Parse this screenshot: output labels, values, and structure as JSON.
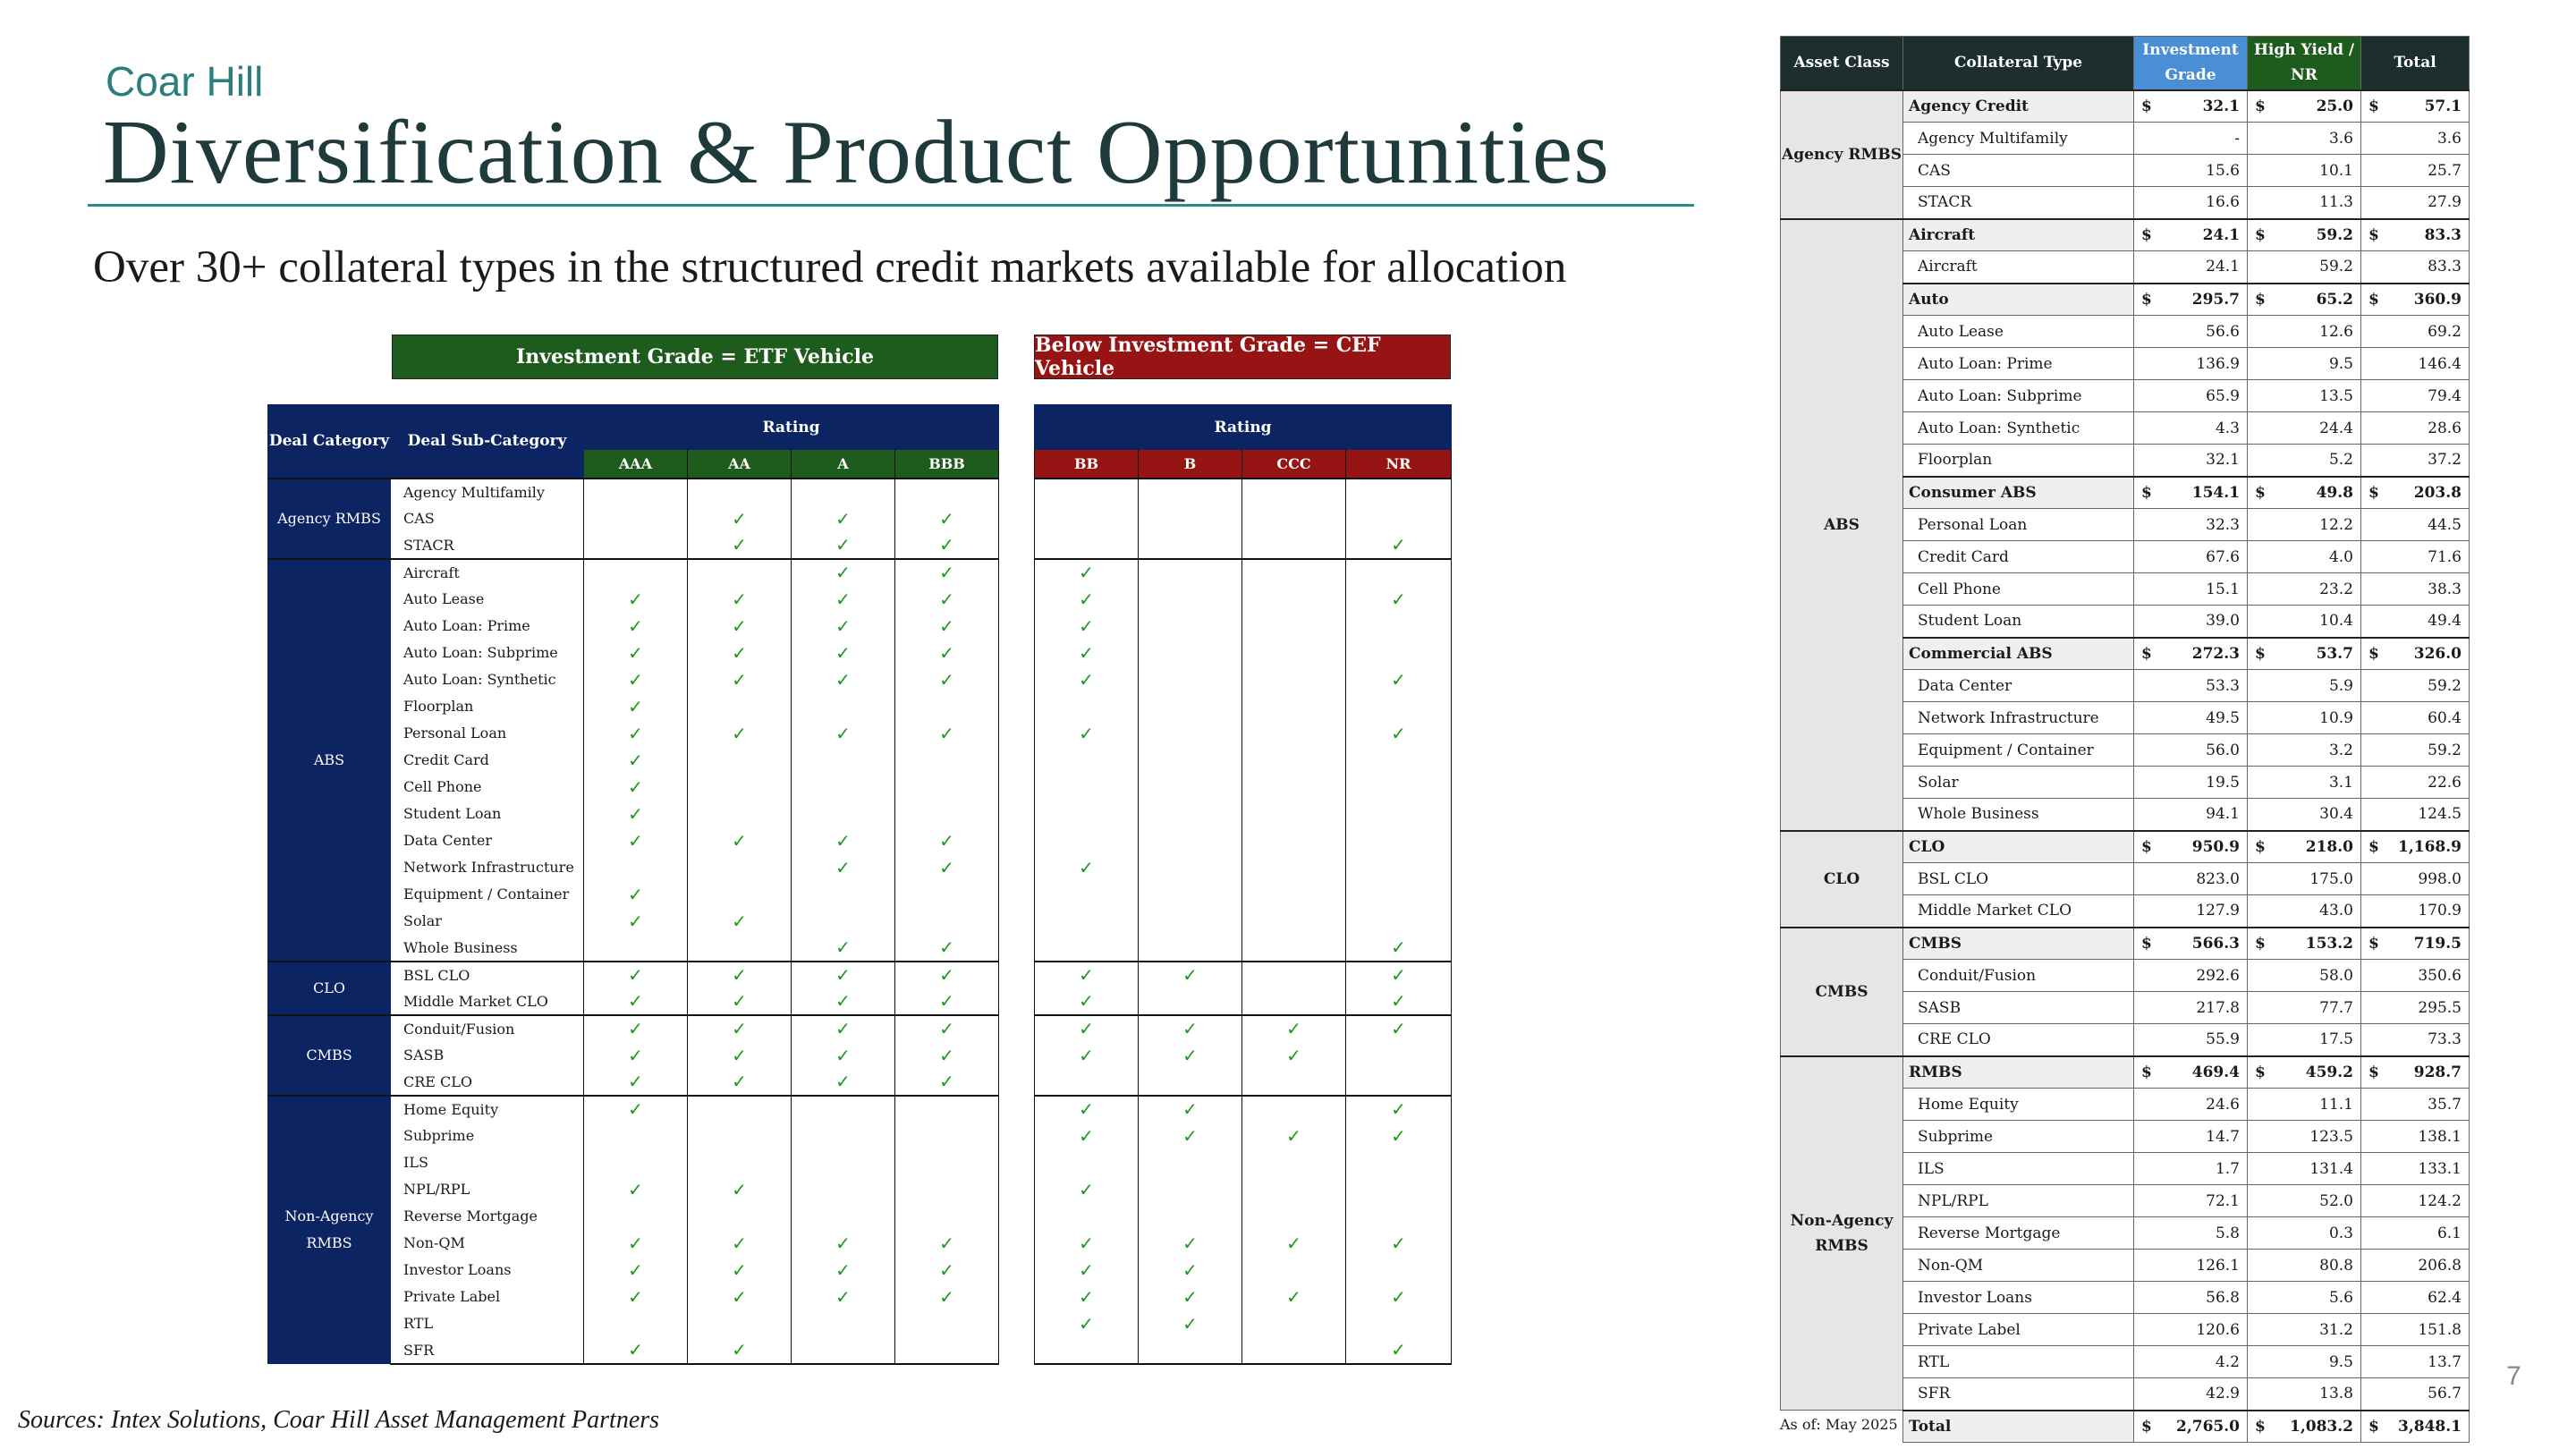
{
  "brand": "Coar Hill",
  "title": "Diversification & Product Opportunities",
  "subtitle": "Over 30+ collateral types in the structured credit markets available for allocation",
  "banners": {
    "ig": "Investment Grade = ETF Vehicle",
    "hy": "Below Investment Grade = CEF Vehicle"
  },
  "matrix": {
    "headers": {
      "deal_category": "Deal Category",
      "deal_sub_category": "Deal Sub-Category",
      "rating": "Rating"
    },
    "ig_ratings": [
      "AAA",
      "AA",
      "A",
      "BBB"
    ],
    "hy_ratings": [
      "BB",
      "B",
      "CCC",
      "NR"
    ],
    "check": "✓",
    "groups": [
      {
        "category": "Agency RMBS",
        "rows": [
          {
            "name": "Agency Multifamily",
            "ig": [
              0,
              0,
              0,
              0
            ],
            "hy": [
              0,
              0,
              0,
              0
            ]
          },
          {
            "name": "CAS",
            "ig": [
              0,
              1,
              1,
              1
            ],
            "hy": [
              0,
              0,
              0,
              0
            ]
          },
          {
            "name": "STACR",
            "ig": [
              0,
              1,
              1,
              1
            ],
            "hy": [
              0,
              0,
              0,
              1
            ]
          }
        ]
      },
      {
        "category": "ABS",
        "rows": [
          {
            "name": "Aircraft",
            "ig": [
              0,
              0,
              1,
              1
            ],
            "hy": [
              1,
              0,
              0,
              0
            ]
          },
          {
            "name": "Auto Lease",
            "ig": [
              1,
              1,
              1,
              1
            ],
            "hy": [
              1,
              0,
              0,
              1
            ]
          },
          {
            "name": "Auto Loan: Prime",
            "ig": [
              1,
              1,
              1,
              1
            ],
            "hy": [
              1,
              0,
              0,
              0
            ]
          },
          {
            "name": "Auto Loan: Subprime",
            "ig": [
              1,
              1,
              1,
              1
            ],
            "hy": [
              1,
              0,
              0,
              0
            ]
          },
          {
            "name": "Auto Loan: Synthetic",
            "ig": [
              1,
              1,
              1,
              1
            ],
            "hy": [
              1,
              0,
              0,
              1
            ]
          },
          {
            "name": "Floorplan",
            "ig": [
              1,
              0,
              0,
              0
            ],
            "hy": [
              0,
              0,
              0,
              0
            ]
          },
          {
            "name": "Personal Loan",
            "ig": [
              1,
              1,
              1,
              1
            ],
            "hy": [
              1,
              0,
              0,
              1
            ]
          },
          {
            "name": "Credit Card",
            "ig": [
              1,
              0,
              0,
              0
            ],
            "hy": [
              0,
              0,
              0,
              0
            ]
          },
          {
            "name": "Cell Phone",
            "ig": [
              1,
              0,
              0,
              0
            ],
            "hy": [
              0,
              0,
              0,
              0
            ]
          },
          {
            "name": "Student Loan",
            "ig": [
              1,
              0,
              0,
              0
            ],
            "hy": [
              0,
              0,
              0,
              0
            ]
          },
          {
            "name": "Data Center",
            "ig": [
              1,
              1,
              1,
              1
            ],
            "hy": [
              0,
              0,
              0,
              0
            ]
          },
          {
            "name": "Network Infrastructure",
            "ig": [
              0,
              0,
              1,
              1
            ],
            "hy": [
              1,
              0,
              0,
              0
            ]
          },
          {
            "name": "Equipment / Container",
            "ig": [
              1,
              0,
              0,
              0
            ],
            "hy": [
              0,
              0,
              0,
              0
            ]
          },
          {
            "name": "Solar",
            "ig": [
              1,
              1,
              0,
              0
            ],
            "hy": [
              0,
              0,
              0,
              0
            ]
          },
          {
            "name": "Whole Business",
            "ig": [
              0,
              0,
              1,
              1
            ],
            "hy": [
              0,
              0,
              0,
              1
            ]
          }
        ]
      },
      {
        "category": "CLO",
        "rows": [
          {
            "name": "BSL CLO",
            "ig": [
              1,
              1,
              1,
              1
            ],
            "hy": [
              1,
              1,
              0,
              1
            ]
          },
          {
            "name": "Middle Market CLO",
            "ig": [
              1,
              1,
              1,
              1
            ],
            "hy": [
              1,
              0,
              0,
              1
            ]
          }
        ]
      },
      {
        "category": "CMBS",
        "rows": [
          {
            "name": "Conduit/Fusion",
            "ig": [
              1,
              1,
              1,
              1
            ],
            "hy": [
              1,
              1,
              1,
              1
            ]
          },
          {
            "name": "SASB",
            "ig": [
              1,
              1,
              1,
              1
            ],
            "hy": [
              1,
              1,
              1,
              0
            ]
          },
          {
            "name": "CRE CLO",
            "ig": [
              1,
              1,
              1,
              1
            ],
            "hy": [
              0,
              0,
              0,
              0
            ]
          }
        ]
      },
      {
        "category": "Non-Agency RMBS",
        "rows": [
          {
            "name": "Home Equity",
            "ig": [
              1,
              0,
              0,
              0
            ],
            "hy": [
              1,
              1,
              0,
              1
            ]
          },
          {
            "name": "Subprime",
            "ig": [
              0,
              0,
              0,
              0
            ],
            "hy": [
              1,
              1,
              1,
              1
            ]
          },
          {
            "name": "ILS",
            "ig": [
              0,
              0,
              0,
              0
            ],
            "hy": [
              0,
              0,
              0,
              0
            ]
          },
          {
            "name": "NPL/RPL",
            "ig": [
              1,
              1,
              0,
              0
            ],
            "hy": [
              1,
              0,
              0,
              0
            ]
          },
          {
            "name": "Reverse Mortgage",
            "ig": [
              0,
              0,
              0,
              0
            ],
            "hy": [
              0,
              0,
              0,
              0
            ]
          },
          {
            "name": "Non-QM",
            "ig": [
              1,
              1,
              1,
              1
            ],
            "hy": [
              1,
              1,
              1,
              1
            ]
          },
          {
            "name": "Investor Loans",
            "ig": [
              1,
              1,
              1,
              1
            ],
            "hy": [
              1,
              1,
              0,
              0
            ]
          },
          {
            "name": "Private Label",
            "ig": [
              1,
              1,
              1,
              1
            ],
            "hy": [
              1,
              1,
              1,
              1
            ]
          },
          {
            "name": "RTL",
            "ig": [
              0,
              0,
              0,
              0
            ],
            "hy": [
              1,
              1,
              0,
              0
            ]
          },
          {
            "name": "SFR",
            "ig": [
              1,
              1,
              0,
              0
            ],
            "hy": [
              0,
              0,
              0,
              1
            ]
          }
        ]
      }
    ]
  },
  "market_table": {
    "headers": {
      "asset_class": "Asset Class",
      "collateral_type": "Collateral Type",
      "investment_grade": "Investment Grade",
      "high_yield": "High Yield / NR",
      "total": "Total"
    },
    "currency": "$",
    "groups": [
      {
        "asset_class": "Agency RMBS",
        "rows": [
          {
            "type": "Agency Credit",
            "sum": true,
            "ig": "32.1",
            "hy": "25.0",
            "total": "57.1"
          },
          {
            "type": "Agency Multifamily",
            "ig": "-",
            "hy": "3.6",
            "total": "3.6"
          },
          {
            "type": "CAS",
            "ig": "15.6",
            "hy": "10.1",
            "total": "25.7"
          },
          {
            "type": "STACR",
            "ig": "16.6",
            "hy": "11.3",
            "total": "27.9"
          }
        ]
      },
      {
        "asset_class": "ABS",
        "rows": [
          {
            "type": "Aircraft",
            "sum": true,
            "ig": "24.1",
            "hy": "59.2",
            "total": "83.3"
          },
          {
            "type": "Aircraft",
            "ig": "24.1",
            "hy": "59.2",
            "total": "83.3"
          },
          {
            "type": "Auto",
            "sum": true,
            "ig": "295.7",
            "hy": "65.2",
            "total": "360.9"
          },
          {
            "type": "Auto Lease",
            "ig": "56.6",
            "hy": "12.6",
            "total": "69.2"
          },
          {
            "type": "Auto Loan: Prime",
            "ig": "136.9",
            "hy": "9.5",
            "total": "146.4"
          },
          {
            "type": "Auto Loan: Subprime",
            "ig": "65.9",
            "hy": "13.5",
            "total": "79.4"
          },
          {
            "type": "Auto Loan: Synthetic",
            "ig": "4.3",
            "hy": "24.4",
            "total": "28.6"
          },
          {
            "type": "Floorplan",
            "ig": "32.1",
            "hy": "5.2",
            "total": "37.2"
          },
          {
            "type": "Consumer ABS",
            "sum": true,
            "ig": "154.1",
            "hy": "49.8",
            "total": "203.8"
          },
          {
            "type": "Personal Loan",
            "ig": "32.3",
            "hy": "12.2",
            "total": "44.5"
          },
          {
            "type": "Credit Card",
            "ig": "67.6",
            "hy": "4.0",
            "total": "71.6"
          },
          {
            "type": "Cell Phone",
            "ig": "15.1",
            "hy": "23.2",
            "total": "38.3"
          },
          {
            "type": "Student Loan",
            "ig": "39.0",
            "hy": "10.4",
            "total": "49.4"
          },
          {
            "type": "Commercial ABS",
            "sum": true,
            "ig": "272.3",
            "hy": "53.7",
            "total": "326.0"
          },
          {
            "type": "Data Center",
            "ig": "53.3",
            "hy": "5.9",
            "total": "59.2"
          },
          {
            "type": "Network Infrastructure",
            "ig": "49.5",
            "hy": "10.9",
            "total": "60.4"
          },
          {
            "type": "Equipment / Container",
            "ig": "56.0",
            "hy": "3.2",
            "total": "59.2"
          },
          {
            "type": "Solar",
            "ig": "19.5",
            "hy": "3.1",
            "total": "22.6"
          },
          {
            "type": "Whole Business",
            "ig": "94.1",
            "hy": "30.4",
            "total": "124.5"
          }
        ]
      },
      {
        "asset_class": "CLO",
        "rows": [
          {
            "type": "CLO",
            "sum": true,
            "ig": "950.9",
            "hy": "218.0",
            "total": "1,168.9"
          },
          {
            "type": "BSL CLO",
            "ig": "823.0",
            "hy": "175.0",
            "total": "998.0"
          },
          {
            "type": "Middle Market CLO",
            "ig": "127.9",
            "hy": "43.0",
            "total": "170.9"
          }
        ]
      },
      {
        "asset_class": "CMBS",
        "rows": [
          {
            "type": "CMBS",
            "sum": true,
            "ig": "566.3",
            "hy": "153.2",
            "total": "719.5"
          },
          {
            "type": "Conduit/Fusion",
            "ig": "292.6",
            "hy": "58.0",
            "total": "350.6"
          },
          {
            "type": "SASB",
            "ig": "217.8",
            "hy": "77.7",
            "total": "295.5"
          },
          {
            "type": "CRE CLO",
            "ig": "55.9",
            "hy": "17.5",
            "total": "73.3"
          }
        ]
      },
      {
        "asset_class": "Non-Agency RMBS",
        "rows": [
          {
            "type": "RMBS",
            "sum": true,
            "ig": "469.4",
            "hy": "459.2",
            "total": "928.7"
          },
          {
            "type": "Home Equity",
            "ig": "24.6",
            "hy": "11.1",
            "total": "35.7"
          },
          {
            "type": "Subprime",
            "ig": "14.7",
            "hy": "123.5",
            "total": "138.1"
          },
          {
            "type": "ILS",
            "ig": "1.7",
            "hy": "131.4",
            "total": "133.1"
          },
          {
            "type": "NPL/RPL",
            "ig": "72.1",
            "hy": "52.0",
            "total": "124.2"
          },
          {
            "type": "Reverse Mortgage",
            "ig": "5.8",
            "hy": "0.3",
            "total": "6.1"
          },
          {
            "type": "Non-QM",
            "ig": "126.1",
            "hy": "80.8",
            "total": "206.8"
          },
          {
            "type": "Investor Loans",
            "ig": "56.8",
            "hy": "5.6",
            "total": "62.4"
          },
          {
            "type": "Private Label",
            "ig": "120.6",
            "hy": "31.2",
            "total": "151.8"
          },
          {
            "type": "RTL",
            "ig": "4.2",
            "hy": "9.5",
            "total": "13.7"
          },
          {
            "type": "SFR",
            "ig": "42.9",
            "hy": "13.8",
            "total": "56.7"
          }
        ]
      }
    ],
    "total_row": {
      "type": "Total",
      "ig": "2,765.0",
      "hy": "1,083.2",
      "total": "3,848.1"
    }
  },
  "as_of": "As of: May 2025",
  "sources": "Sources: Intex Solutions, Coar Hill Asset Management Partners",
  "page_number": "7"
}
